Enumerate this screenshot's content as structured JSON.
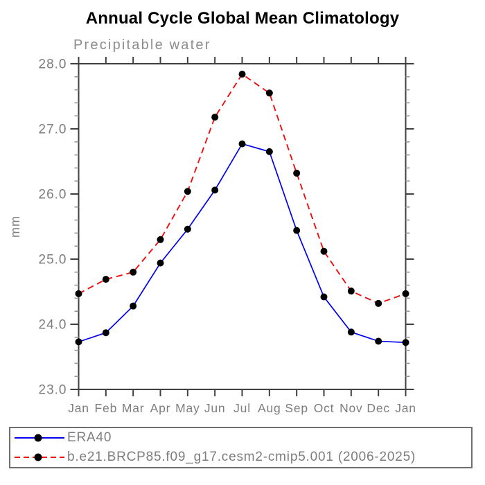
{
  "title": "Annual Cycle Global Mean Climatology",
  "subtitle": "Precipitable water",
  "chart_data": {
    "type": "line",
    "title": "Annual Cycle Global Mean Climatology",
    "subtitle": "Precipitable water",
    "ylabel": "mm",
    "xlabel": "",
    "categories": [
      "Jan",
      "Feb",
      "Mar",
      "Apr",
      "May",
      "Jun",
      "Jul",
      "Aug",
      "Sep",
      "Oct",
      "Nov",
      "Dec",
      "Jan"
    ],
    "series": [
      {
        "name": "ERA40",
        "color": "#0000ee",
        "style": "solid",
        "marker": "filled-black-circle",
        "values": [
          23.73,
          23.87,
          24.28,
          24.94,
          25.46,
          26.06,
          26.77,
          26.65,
          25.44,
          24.42,
          23.88,
          23.74,
          23.72
        ]
      },
      {
        "name": "b.e21.BRCP85.f09_g17.cesm2-cmip5.001 (2006-2025)",
        "color": "#f20d0d",
        "style": "dashed",
        "marker": "filled-black-circle",
        "values": [
          24.47,
          24.69,
          24.8,
          25.3,
          26.04,
          27.18,
          27.84,
          27.55,
          26.32,
          25.12,
          24.51,
          24.32,
          24.47
        ]
      }
    ],
    "ylim": [
      23.0,
      28.0
    ],
    "ytick_step": 1.0,
    "yminor_step": 0.2,
    "ytick_labels": [
      "23.0",
      "24.0",
      "25.0",
      "26.0",
      "27.0",
      "28.0"
    ],
    "grid": "off",
    "frame": "box",
    "legend_position": "bottom-left-outside"
  },
  "colors": {
    "axis": "#3f3f3f",
    "tick_minor": "#9a9a9a",
    "text_gray": "#7d7d7d",
    "marker": "#000000",
    "title_text": "#000000",
    "subtitle_text": "#8c8c8c",
    "legend_border": "#6e6e6e",
    "background": "#ffffff"
  }
}
